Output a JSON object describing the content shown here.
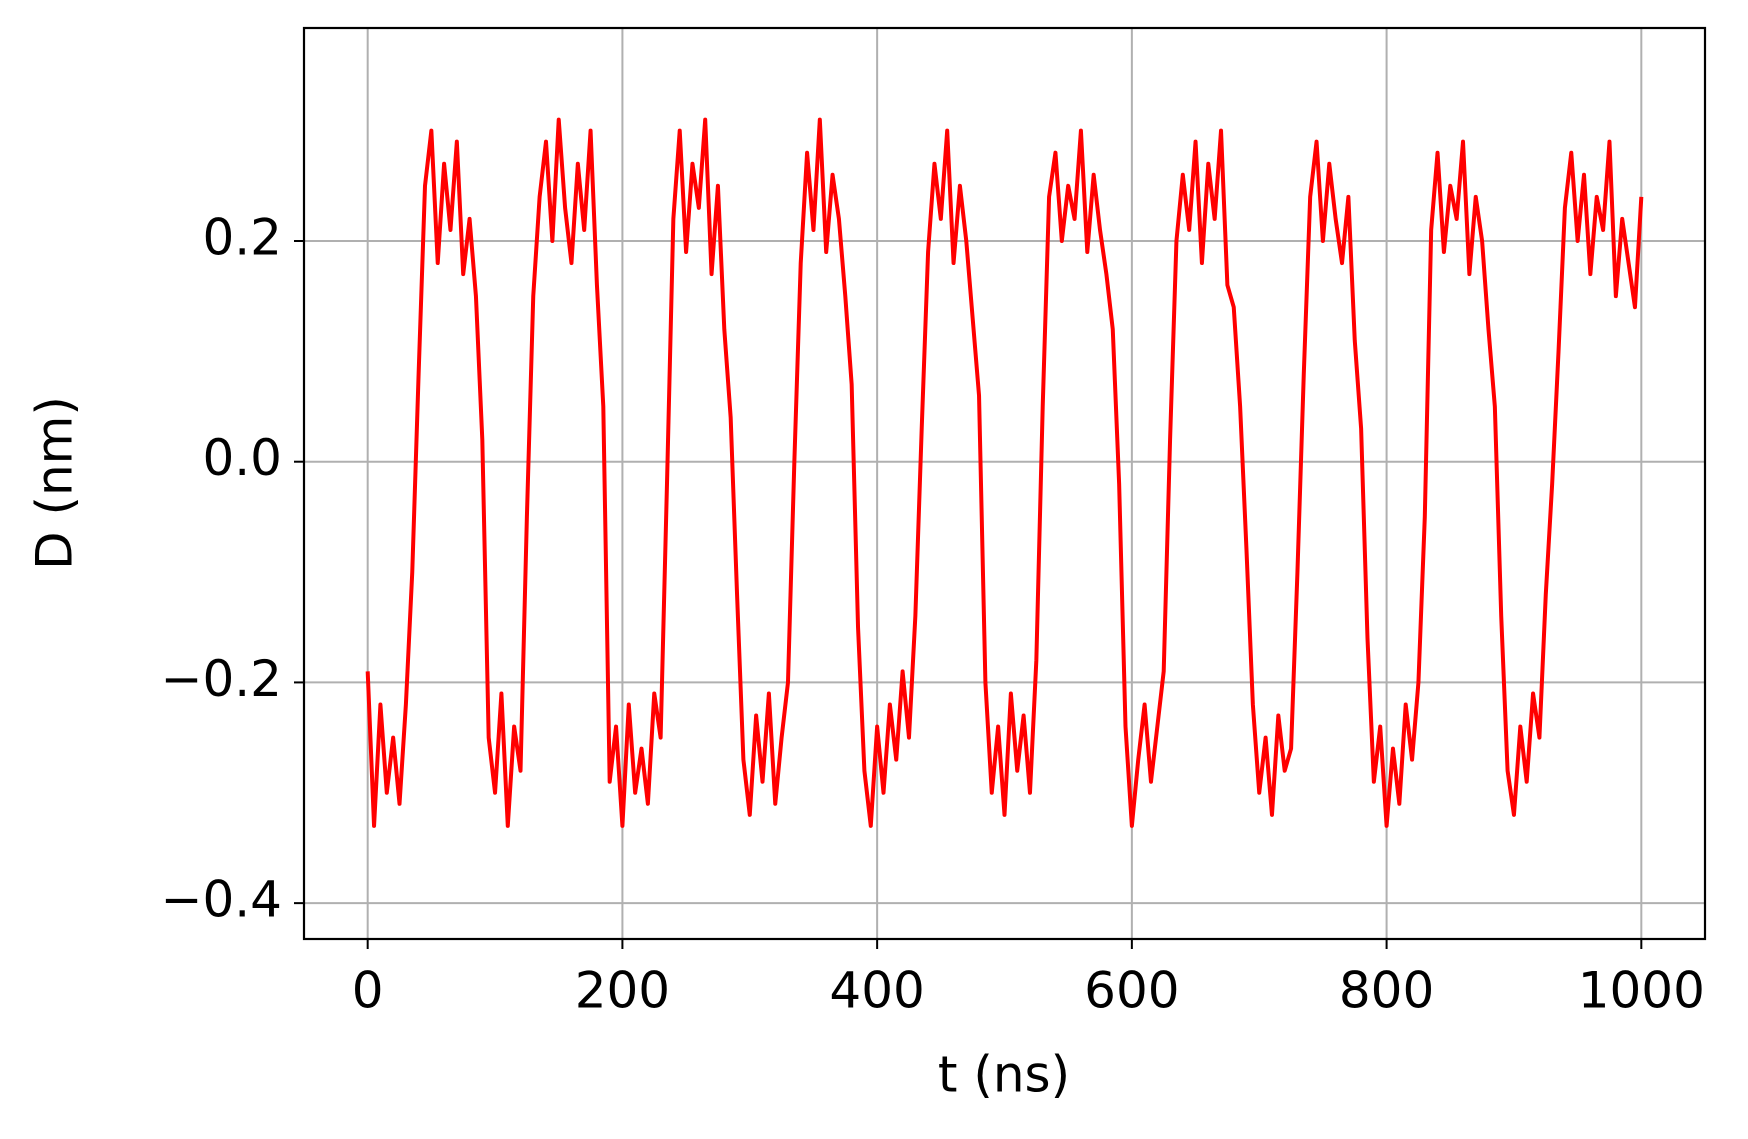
{
  "chart_data": {
    "type": "line",
    "xlabel": "t (ns)",
    "ylabel": "D (nm)",
    "color": "#ff0000",
    "grid": true,
    "xlim": [
      -50,
      1050
    ],
    "ylim": [
      -0.4325,
      0.393
    ],
    "xticks": [
      0,
      200,
      400,
      600,
      800,
      1000
    ],
    "yticks": [
      {
        "value": -0.4,
        "label": "−0.4"
      },
      {
        "value": -0.2,
        "label": "−0.2"
      },
      {
        "value": 0.0,
        "label": "0.0"
      },
      0.2
    ],
    "x": [
      0,
      5,
      10,
      15,
      20,
      25,
      30,
      35,
      40,
      45,
      50,
      55,
      60,
      65,
      70,
      75,
      80,
      85,
      90,
      95,
      100,
      105,
      110,
      115,
      120,
      125,
      130,
      135,
      140,
      145,
      150,
      155,
      160,
      165,
      170,
      175,
      180,
      185,
      190,
      195,
      200,
      205,
      210,
      215,
      220,
      225,
      230,
      235,
      240,
      245,
      250,
      255,
      260,
      265,
      270,
      275,
      280,
      285,
      290,
      295,
      300,
      305,
      310,
      315,
      320,
      325,
      330,
      335,
      340,
      345,
      350,
      355,
      360,
      365,
      370,
      375,
      380,
      385,
      390,
      395,
      400,
      405,
      410,
      415,
      420,
      425,
      430,
      435,
      440,
      445,
      450,
      455,
      460,
      465,
      470,
      475,
      480,
      485,
      490,
      495,
      500,
      505,
      510,
      515,
      520,
      525,
      530,
      535,
      540,
      545,
      550,
      555,
      560,
      565,
      570,
      575,
      580,
      585,
      590,
      595,
      600,
      605,
      610,
      615,
      620,
      625,
      630,
      635,
      640,
      645,
      650,
      655,
      660,
      665,
      670,
      675,
      680,
      685,
      690,
      695,
      700,
      705,
      710,
      715,
      720,
      725,
      730,
      735,
      740,
      745,
      750,
      755,
      760,
      765,
      770,
      775,
      780,
      785,
      790,
      795,
      800,
      805,
      810,
      815,
      820,
      825,
      830,
      835,
      840,
      845,
      850,
      855,
      860,
      865,
      870,
      875,
      880,
      885,
      890,
      895,
      900,
      905,
      910,
      915,
      920,
      925,
      930,
      935,
      940,
      945,
      950,
      955,
      960,
      965,
      970,
      975,
      980,
      985,
      990,
      995,
      1000
    ],
    "values": [
      -0.19,
      -0.33,
      -0.22,
      -0.3,
      -0.25,
      -0.31,
      -0.22,
      -0.1,
      0.08,
      0.25,
      0.3,
      0.18,
      0.27,
      0.21,
      0.29,
      0.17,
      0.22,
      0.15,
      0.02,
      -0.25,
      -0.3,
      -0.21,
      -0.33,
      -0.24,
      -0.28,
      -0.05,
      0.15,
      0.24,
      0.29,
      0.2,
      0.31,
      0.23,
      0.18,
      0.27,
      0.21,
      0.3,
      0.16,
      0.05,
      -0.29,
      -0.24,
      -0.33,
      -0.22,
      -0.3,
      -0.26,
      -0.31,
      -0.21,
      -0.25,
      -0.02,
      0.22,
      0.3,
      0.19,
      0.27,
      0.23,
      0.31,
      0.17,
      0.25,
      0.12,
      0.04,
      -0.12,
      -0.27,
      -0.32,
      -0.23,
      -0.29,
      -0.21,
      -0.31,
      -0.25,
      -0.2,
      0.0,
      0.18,
      0.28,
      0.21,
      0.31,
      0.19,
      0.26,
      0.22,
      0.15,
      0.07,
      -0.15,
      -0.28,
      -0.33,
      -0.24,
      -0.3,
      -0.22,
      -0.27,
      -0.19,
      -0.25,
      -0.14,
      0.03,
      0.19,
      0.27,
      0.22,
      0.3,
      0.18,
      0.25,
      0.2,
      0.13,
      0.06,
      -0.2,
      -0.3,
      -0.24,
      -0.32,
      -0.21,
      -0.28,
      -0.23,
      -0.3,
      -0.18,
      0.05,
      0.24,
      0.28,
      0.2,
      0.25,
      0.22,
      0.3,
      0.19,
      0.26,
      0.21,
      0.17,
      0.12,
      -0.02,
      -0.24,
      -0.33,
      -0.27,
      -0.22,
      -0.29,
      -0.24,
      -0.19,
      0.02,
      0.2,
      0.26,
      0.21,
      0.29,
      0.18,
      0.27,
      0.22,
      0.3,
      0.16,
      0.14,
      0.05,
      -0.08,
      -0.22,
      -0.3,
      -0.25,
      -0.32,
      -0.23,
      -0.28,
      -0.26,
      -0.1,
      0.08,
      0.24,
      0.29,
      0.2,
      0.27,
      0.22,
      0.18,
      0.24,
      0.11,
      0.03,
      -0.16,
      -0.29,
      -0.24,
      -0.33,
      -0.26,
      -0.31,
      -0.22,
      -0.27,
      -0.2,
      -0.05,
      0.21,
      0.28,
      0.19,
      0.25,
      0.22,
      0.29,
      0.17,
      0.24,
      0.2,
      0.12,
      0.05,
      -0.14,
      -0.28,
      -0.32,
      -0.24,
      -0.29,
      -0.21,
      -0.25,
      -0.12,
      -0.02,
      0.1,
      0.23,
      0.28,
      0.2,
      0.26,
      0.17,
      0.24,
      0.21,
      0.29,
      0.15,
      0.22,
      0.18,
      0.14,
      0.24
    ]
  }
}
